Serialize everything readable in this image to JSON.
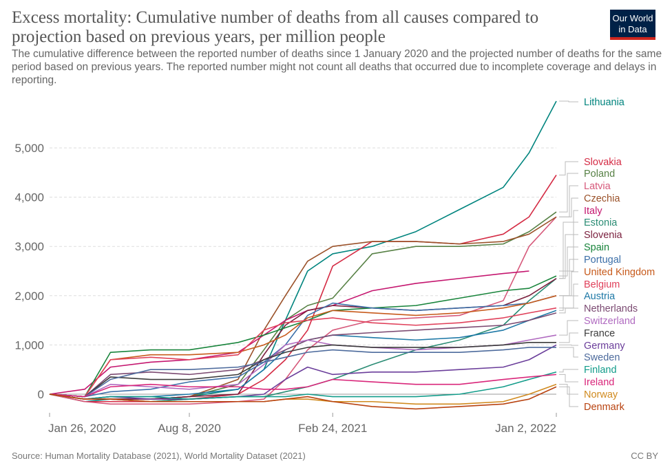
{
  "title": "Excess mortality: Cumulative number of deaths from all causes compared to projection based on previous years, per million people",
  "subtitle": "The cumulative difference between the reported number of deaths since 1 January 2020 and the projected number of deaths for the same period based on previous years. The reported number might not count all deaths that occurred due to incomplete coverage and delays in reporting.",
  "logo": {
    "line1": "Our World",
    "line2": "in Data",
    "bg": "#002147",
    "accent": "#ce261e"
  },
  "source": "Source: Human Mortality Database (2021), World Mortality Dataset (2021)",
  "license": "CC BY",
  "chart_data": {
    "type": "line",
    "title": "",
    "xlabel": "",
    "ylabel": "",
    "xlim": [
      "2020-01-26",
      "2022-01-02"
    ],
    "ylim": [
      -300,
      6000
    ],
    "grid": true,
    "legend": "right",
    "x_ticks": [
      {
        "date": "2020-01-26",
        "label": "Jan 26, 2020"
      },
      {
        "date": "2020-08-08",
        "label": "Aug 8, 2020"
      },
      {
        "date": "2021-02-24",
        "label": "Feb 24, 2021"
      },
      {
        "date": "2022-01-02",
        "label": "Jan 2, 2022"
      }
    ],
    "y_ticks": [
      {
        "v": 0,
        "label": "0"
      },
      {
        "v": 1000,
        "label": "1,000"
      },
      {
        "v": 2000,
        "label": "2,000"
      },
      {
        "v": 3000,
        "label": "3,000"
      },
      {
        "v": 4000,
        "label": "4,000"
      },
      {
        "v": 5000,
        "label": "5,000"
      }
    ],
    "x": [
      "2020-01-26",
      "2020-03-15",
      "2020-04-20",
      "2020-06-15",
      "2020-08-08",
      "2020-10-15",
      "2020-11-20",
      "2020-12-20",
      "2021-01-20",
      "2021-02-24",
      "2021-04-20",
      "2021-06-20",
      "2021-08-20",
      "2021-10-20",
      "2021-11-25",
      "2022-01-02"
    ],
    "series": [
      {
        "name": "Lithuania",
        "color": "#00847e",
        "values": [
          0,
          -150,
          -100,
          -100,
          -50,
          100,
          500,
          1500,
          2500,
          2850,
          3000,
          3300,
          3750,
          4200,
          4900,
          5950
        ]
      },
      {
        "name": "Slovakia",
        "color": "#d42b44",
        "values": [
          0,
          -150,
          -150,
          -150,
          -100,
          0,
          300,
          700,
          1300,
          2600,
          3100,
          3100,
          3050,
          3250,
          3600,
          4450
        ]
      },
      {
        "name": "Poland",
        "color": "#578145",
        "values": [
          0,
          -100,
          -100,
          -100,
          -50,
          200,
          900,
          1500,
          1800,
          1950,
          2850,
          3000,
          3000,
          3050,
          3300,
          3700
        ]
      },
      {
        "name": "Latvia",
        "color": "#d6587a",
        "values": [
          0,
          -150,
          -200,
          -200,
          -200,
          -150,
          -100,
          300,
          900,
          1300,
          1500,
          1550,
          1600,
          1900,
          3000,
          3600
        ]
      },
      {
        "name": "Czechia",
        "color": "#9a5129",
        "values": [
          0,
          -100,
          -100,
          -100,
          -50,
          300,
          1300,
          2000,
          2700,
          3000,
          3100,
          3100,
          3050,
          3100,
          3250,
          3600
        ]
      },
      {
        "name": "Italy",
        "color": "#c4156e",
        "values": [
          0,
          100,
          550,
          650,
          700,
          850,
          1200,
          1500,
          1700,
          1800,
          2100,
          2250,
          2350,
          2450,
          2500,
          null
        ]
      },
      {
        "name": "Estonia",
        "color": "#2a8c74",
        "values": [
          0,
          -100,
          -100,
          -150,
          -100,
          -50,
          -50,
          50,
          150,
          300,
          600,
          900,
          1100,
          1400,
          1900,
          2350
        ]
      },
      {
        "name": "Slovenia",
        "color": "#7a1f3d",
        "values": [
          0,
          -100,
          -100,
          -100,
          -50,
          0,
          800,
          1400,
          1700,
          1800,
          1750,
          1700,
          1750,
          1800,
          2000,
          2350
        ]
      },
      {
        "name": "Spain",
        "color": "#18843b",
        "values": [
          0,
          -50,
          850,
          900,
          900,
          1050,
          1200,
          1350,
          1500,
          1700,
          1750,
          1800,
          1950,
          2100,
          2150,
          2400
        ]
      },
      {
        "name": "Portugal",
        "color": "#3c6fa8",
        "values": [
          0,
          -50,
          50,
          100,
          250,
          350,
          650,
          1000,
          1600,
          1850,
          1750,
          1700,
          1750,
          1800,
          1850,
          2000
        ]
      },
      {
        "name": "United Kingdom",
        "color": "#c75a1b",
        "values": [
          0,
          -50,
          700,
          800,
          800,
          850,
          1000,
          1200,
          1550,
          1700,
          1650,
          1600,
          1650,
          1750,
          1850,
          2000
        ]
      },
      {
        "name": "Belgium",
        "color": "#e0405a",
        "values": [
          0,
          -50,
          700,
          750,
          700,
          800,
          1300,
          1450,
          1500,
          1550,
          1450,
          1400,
          1450,
          1550,
          1650,
          1750
        ]
      },
      {
        "name": "Austria",
        "color": "#1d78a6",
        "values": [
          0,
          -100,
          -50,
          -50,
          0,
          100,
          500,
          900,
          1100,
          1200,
          1150,
          1100,
          1150,
          1300,
          1500,
          1700
        ]
      },
      {
        "name": "Netherlands",
        "color": "#7b4a72",
        "values": [
          0,
          -50,
          400,
          450,
          400,
          500,
          700,
          900,
          1100,
          1200,
          1250,
          1300,
          1350,
          1400,
          1500,
          1650
        ]
      },
      {
        "name": "Switzerland",
        "color": "#b06ac0",
        "values": [
          0,
          -50,
          200,
          150,
          100,
          200,
          600,
          1000,
          1100,
          1000,
          950,
          900,
          950,
          1000,
          1100,
          1200
        ]
      },
      {
        "name": "France",
        "color": "#3b3b3b",
        "values": [
          0,
          -50,
          350,
          300,
          300,
          400,
          700,
          850,
          950,
          1000,
          950,
          950,
          950,
          1000,
          1050,
          1050
        ]
      },
      {
        "name": "Germany",
        "color": "#6a3d9a",
        "values": [
          0,
          -100,
          -50,
          -100,
          -100,
          -50,
          0,
          300,
          550,
          400,
          450,
          450,
          500,
          550,
          700,
          1000
        ]
      },
      {
        "name": "Sweden",
        "color": "#4c6a9c",
        "values": [
          0,
          -50,
          300,
          500,
          500,
          550,
          650,
          750,
          850,
          900,
          850,
          850,
          850,
          900,
          950,
          950
        ]
      },
      {
        "name": "Finland",
        "color": "#129c8a",
        "values": [
          0,
          -100,
          -50,
          -50,
          -100,
          -50,
          -50,
          -50,
          0,
          -50,
          -50,
          -50,
          0,
          150,
          300,
          450
        ]
      },
      {
        "name": "Ireland",
        "color": "#d9267a",
        "values": [
          0,
          -50,
          150,
          200,
          150,
          150,
          100,
          100,
          150,
          300,
          250,
          200,
          200,
          300,
          350,
          400
        ]
      },
      {
        "name": "Norway",
        "color": "#d08a1e",
        "values": [
          0,
          -100,
          -100,
          -150,
          -150,
          -150,
          -150,
          -100,
          -100,
          -150,
          -150,
          -200,
          -200,
          -150,
          0,
          200
        ]
      },
      {
        "name": "Denmark",
        "color": "#b8420f",
        "values": [
          0,
          -100,
          -100,
          -150,
          -150,
          -150,
          -150,
          -100,
          -50,
          -150,
          -250,
          -300,
          -250,
          -200,
          -100,
          150
        ]
      }
    ]
  }
}
